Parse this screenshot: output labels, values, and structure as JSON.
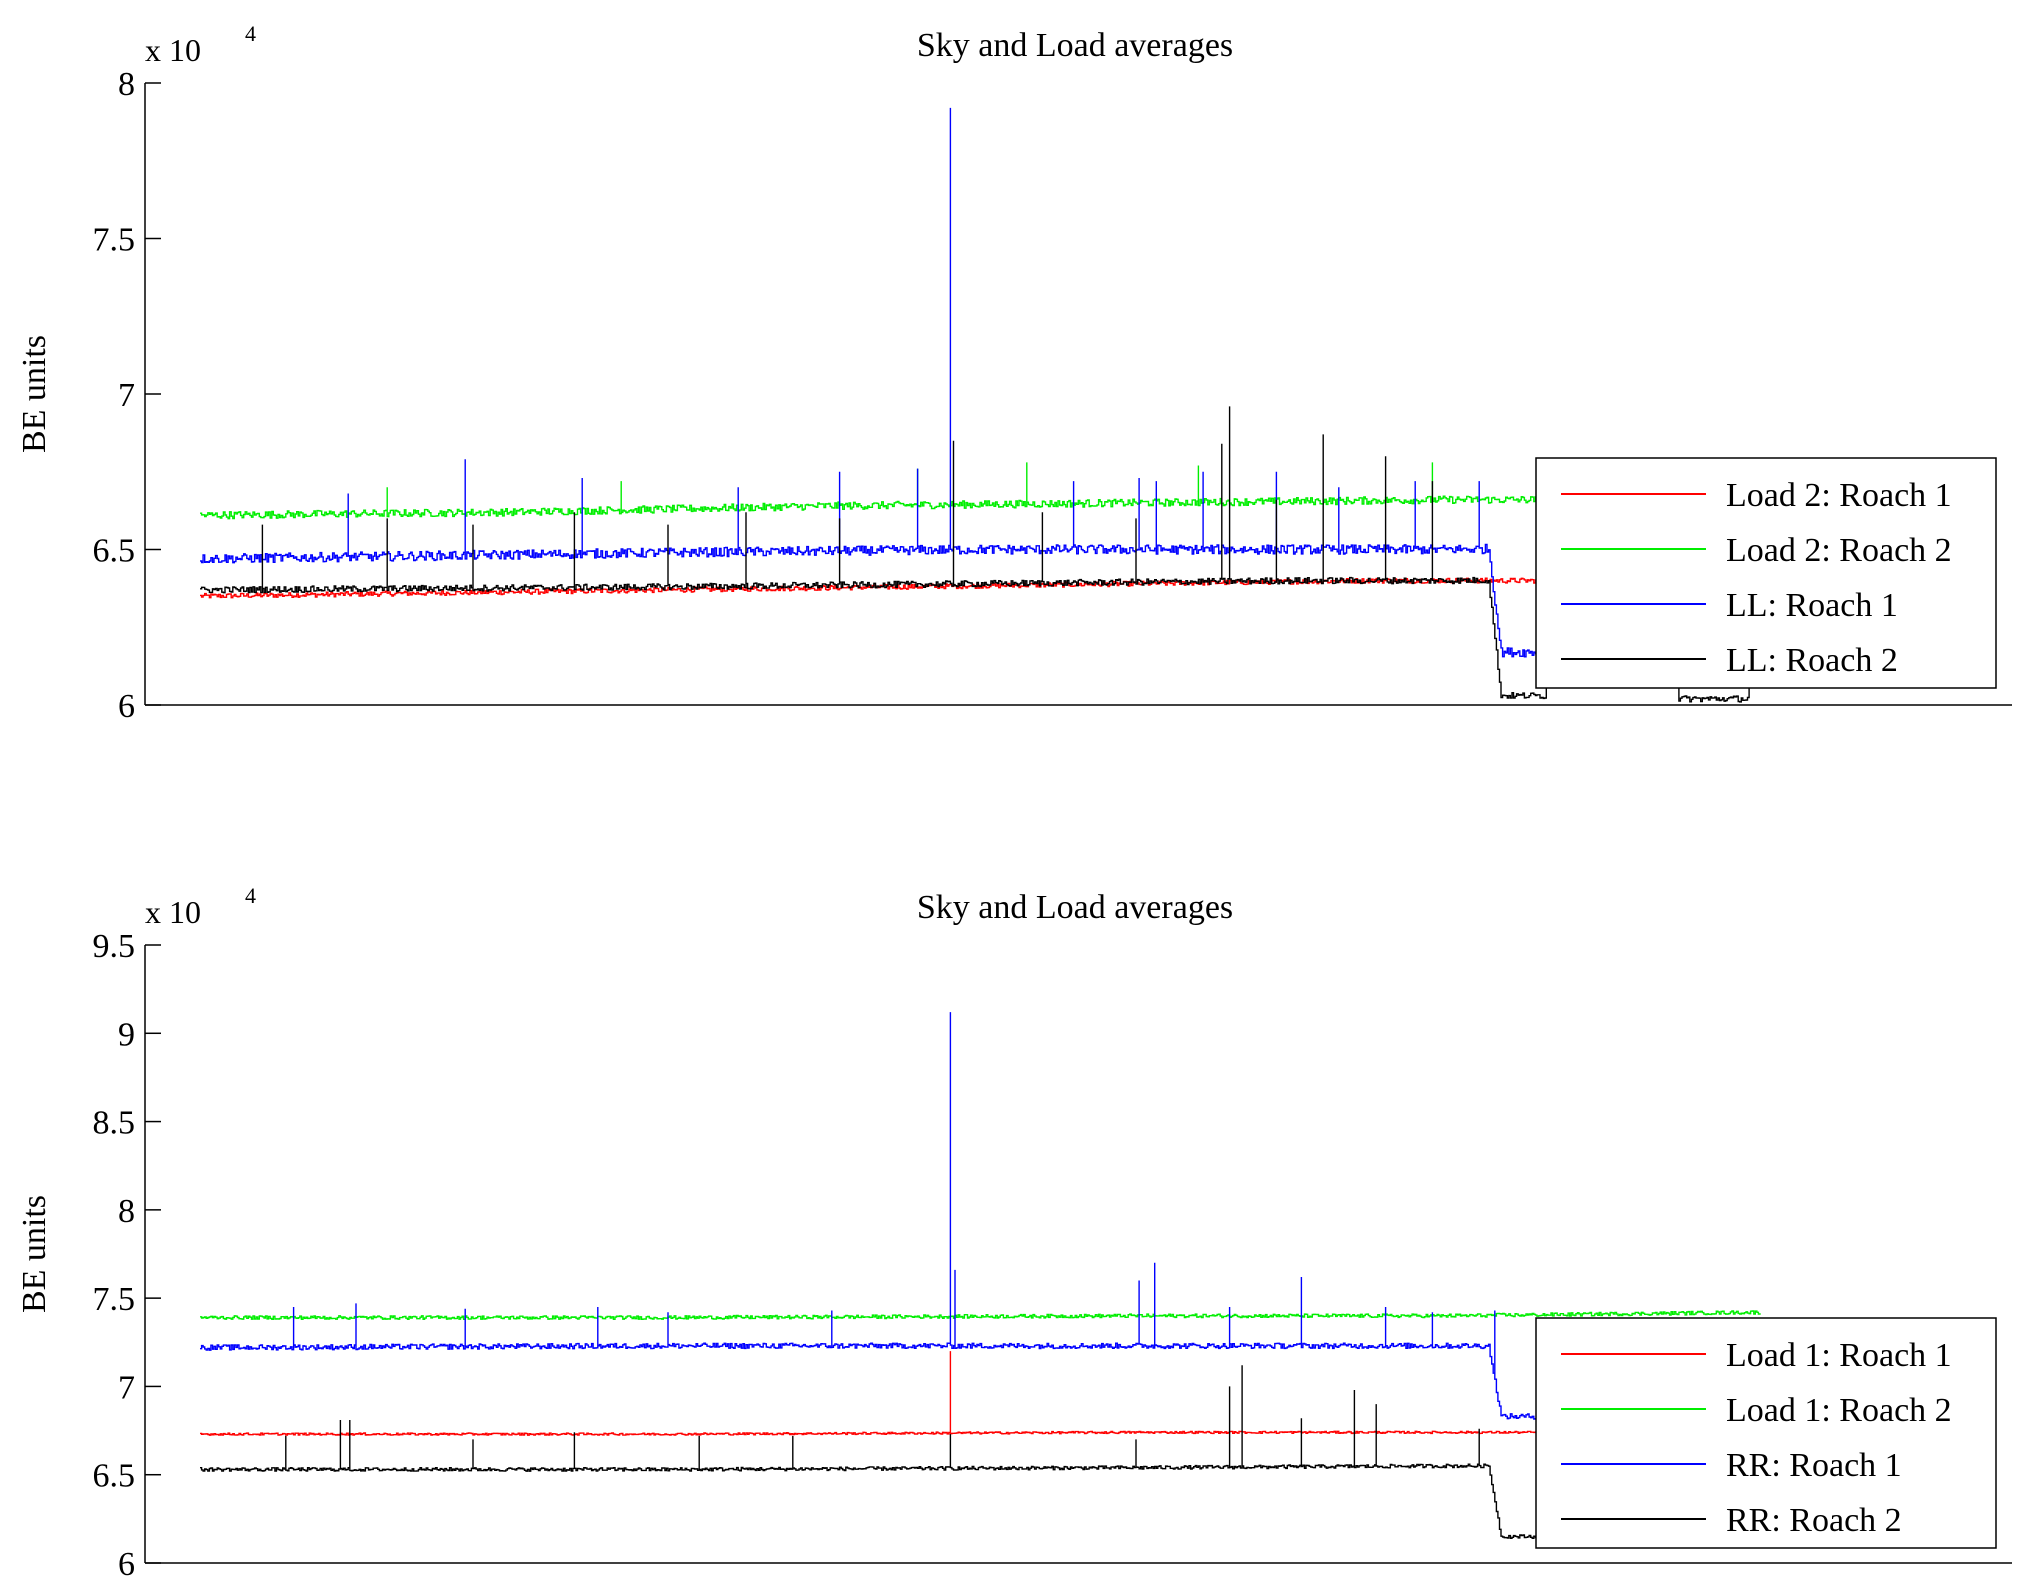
{
  "chart_data": [
    {
      "type": "line",
      "title": "Sky and Load averages",
      "xlabel": "",
      "ylabel": "BE units",
      "exponent_label": "x 10",
      "exponent_power": "4",
      "ylim": [
        6,
        8
      ],
      "yticks": [
        6,
        6.5,
        7,
        7.5,
        8
      ],
      "ytick_labels": [
        "6",
        "6.5",
        "7",
        "7.5",
        "8"
      ],
      "xlim": [
        0,
        1000
      ],
      "grid": false,
      "legend_position": "right",
      "series": [
        {
          "name": "Load 2: Roach 1",
          "color": "#ff0000",
          "segments": [
            [
              0,
              6.35
            ],
            [
              300,
              6.37
            ],
            [
              600,
              6.39
            ],
            [
              750,
              6.4
            ],
            [
              870,
              6.4
            ],
            [
              1000,
              6.4
            ]
          ],
          "noise": 0.008,
          "spikes": [],
          "dips": []
        },
        {
          "name": "Load 2: Roach 2",
          "color": "#00ee00",
          "segments": [
            [
              0,
              6.61
            ],
            [
              200,
              6.62
            ],
            [
              400,
              6.64
            ],
            [
              600,
              6.65
            ],
            [
              800,
              6.66
            ],
            [
              1000,
              6.66
            ]
          ],
          "noise": 0.012,
          "spikes": [
            [
              120,
              6.7
            ],
            [
              270,
              6.72
            ],
            [
              460,
              6.76
            ],
            [
              530,
              6.78
            ],
            [
              640,
              6.77
            ],
            [
              790,
              6.78
            ],
            [
              890,
              6.79
            ],
            [
              900,
              6.78
            ]
          ],
          "dips": []
        },
        {
          "name": "LL: Roach 1",
          "color": "#0000ff",
          "segments": [
            [
              0,
              6.47
            ],
            [
              300,
              6.49
            ],
            [
              500,
              6.5
            ],
            [
              700,
              6.5
            ],
            [
              790,
              6.5
            ],
            [
              1000,
              6.51
            ]
          ],
          "noise": 0.015,
          "spikes": [
            [
              95,
              6.68
            ],
            [
              170,
              6.79
            ],
            [
              245,
              6.73
            ],
            [
              345,
              6.7
            ],
            [
              410,
              6.75
            ],
            [
              460,
              6.76
            ],
            [
              560,
              6.72
            ],
            [
              602,
              6.73
            ],
            [
              613,
              6.72
            ],
            [
              643,
              6.75
            ],
            [
              690,
              6.75
            ],
            [
              730,
              6.7
            ],
            [
              779,
              6.72
            ],
            [
              820,
              6.72
            ]
          ],
          "dips": [
            {
              "start": 826,
              "end": 870,
              "value": 6.17
            },
            {
              "start": 940,
              "end": 1000,
              "value": 6.17
            }
          ],
          "peak": {
            "x": 481,
            "value": 7.92
          }
        },
        {
          "name": "LL: Roach 2",
          "color": "#000000",
          "segments": [
            [
              0,
              6.37
            ],
            [
              300,
              6.38
            ],
            [
              500,
              6.39
            ],
            [
              700,
              6.4
            ],
            [
              800,
              6.4
            ],
            [
              1000,
              6.41
            ]
          ],
          "noise": 0.01,
          "spikes": [
            [
              40,
              6.58
            ],
            [
              120,
              6.6
            ],
            [
              175,
              6.58
            ],
            [
              240,
              6.62
            ],
            [
              300,
              6.58
            ],
            [
              350,
              6.62
            ],
            [
              410,
              6.6
            ],
            [
              483,
              6.85
            ],
            [
              540,
              6.62
            ],
            [
              600,
              6.6
            ],
            [
              655,
              6.84
            ],
            [
              660,
              6.96
            ],
            [
              690,
              6.66
            ],
            [
              720,
              6.87
            ],
            [
              760,
              6.8
            ],
            [
              790,
              6.72
            ]
          ],
          "dips": [
            {
              "start": 826,
              "end": 870,
              "value": 6.03
            },
            {
              "start": 940,
              "end": 1000,
              "value": 6.02
            }
          ]
        }
      ]
    },
    {
      "type": "line",
      "title": "Sky and Load averages",
      "xlabel": "",
      "ylabel": "BE units",
      "exponent_label": "x 10",
      "exponent_power": "4",
      "ylim": [
        6,
        9.5
      ],
      "yticks": [
        6,
        6.5,
        7,
        7.5,
        8,
        8.5,
        9,
        9.5
      ],
      "ytick_labels": [
        "6",
        "6.5",
        "7",
        "7.5",
        "8",
        "8.5",
        "9",
        "9.5"
      ],
      "xlim": [
        0,
        1000
      ],
      "grid": false,
      "legend_position": "right",
      "series": [
        {
          "name": "Load 1: Roach 1",
          "color": "#ff0000",
          "segments": [
            [
              0,
              6.73
            ],
            [
              300,
              6.73
            ],
            [
              600,
              6.74
            ],
            [
              800,
              6.74
            ],
            [
              1000,
              6.74
            ]
          ],
          "noise": 0.006,
          "spikes": [
            [
              481,
              7.2
            ]
          ],
          "dips": []
        },
        {
          "name": "Load 1: Roach 2",
          "color": "#00ee00",
          "segments": [
            [
              0,
              7.39
            ],
            [
              300,
              7.39
            ],
            [
              600,
              7.4
            ],
            [
              800,
              7.4
            ],
            [
              1000,
              7.42
            ]
          ],
          "noise": 0.01,
          "spikes": [],
          "dips": []
        },
        {
          "name": "RR: Roach 1",
          "color": "#0000ff",
          "segments": [
            [
              0,
              7.22
            ],
            [
              300,
              7.23
            ],
            [
              600,
              7.23
            ],
            [
              800,
              7.23
            ],
            [
              1000,
              7.23
            ]
          ],
          "noise": 0.015,
          "spikes": [
            [
              60,
              7.45
            ],
            [
              100,
              7.47
            ],
            [
              170,
              7.44
            ],
            [
              255,
              7.45
            ],
            [
              300,
              7.42
            ],
            [
              405,
              7.43
            ],
            [
              484,
              7.66
            ],
            [
              602,
              7.6
            ],
            [
              612,
              7.7
            ],
            [
              660,
              7.45
            ],
            [
              706,
              7.62
            ],
            [
              760,
              7.45
            ],
            [
              790,
              7.42
            ],
            [
              830,
              7.43
            ]
          ],
          "dips": [
            {
              "start": 826,
              "end": 870,
              "value": 6.83
            },
            {
              "start": 940,
              "end": 1000,
              "value": 6.84
            }
          ],
          "peak": {
            "x": 481,
            "value": 9.12
          }
        },
        {
          "name": "RR: Roach 2",
          "color": "#000000",
          "segments": [
            [
              0,
              6.53
            ],
            [
              300,
              6.53
            ],
            [
              600,
              6.54
            ],
            [
              800,
              6.55
            ],
            [
              1000,
              6.55
            ]
          ],
          "noise": 0.01,
          "spikes": [
            [
              55,
              6.72
            ],
            [
              90,
              6.81
            ],
            [
              96,
              6.81
            ],
            [
              175,
              6.7
            ],
            [
              240,
              6.74
            ],
            [
              320,
              6.72
            ],
            [
              380,
              6.72
            ],
            [
              481,
              6.73
            ],
            [
              600,
              6.7
            ],
            [
              660,
              7.0
            ],
            [
              668,
              7.12
            ],
            [
              706,
              6.82
            ],
            [
              740,
              6.98
            ],
            [
              754,
              6.9
            ],
            [
              820,
              6.76
            ]
          ],
          "dips": [
            {
              "start": 826,
              "end": 870,
              "value": 6.15
            },
            {
              "start": 940,
              "end": 1000,
              "value": 6.15
            }
          ]
        }
      ]
    }
  ]
}
